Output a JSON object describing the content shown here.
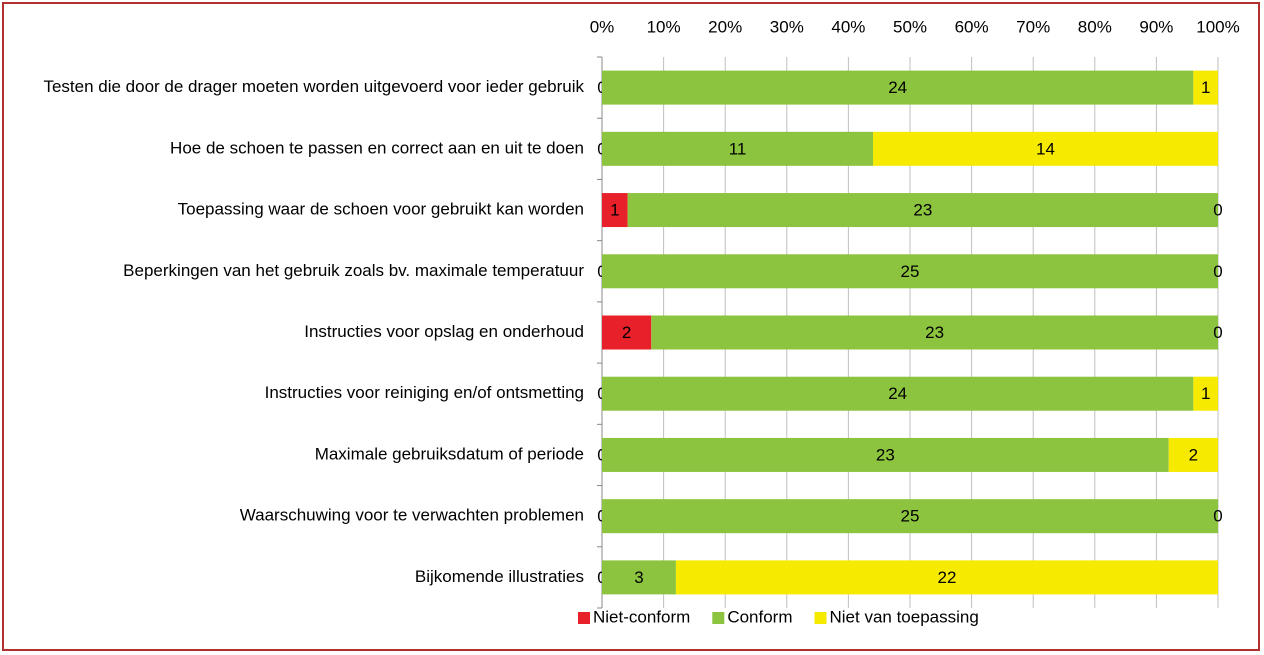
{
  "chart_data": {
    "type": "bar",
    "orientation": "horizontal",
    "stacked": "percent",
    "categories": [
      "Testen die door de drager moeten worden uitgevoerd voor ieder gebruik",
      "Hoe de schoen te passen en correct aan en uit te doen",
      "Toepassing waar de schoen voor gebruikt kan worden",
      "Beperkingen van het gebruik zoals bv. maximale temperatuur",
      "Instructies voor opslag en onderhoud",
      "Instructies voor reiniging en/of ontsmetting",
      "Maximale gebruiksdatum of periode",
      "Waarschuwing voor te verwachten problemen",
      "Bijkomende illustraties"
    ],
    "series": [
      {
        "name": "Niet-conform",
        "color": "#e8202a",
        "values": [
          0,
          0,
          1,
          0,
          2,
          0,
          0,
          0,
          0
        ]
      },
      {
        "name": "Conform",
        "color": "#8dc43f",
        "values": [
          24,
          11,
          23,
          25,
          23,
          24,
          23,
          25,
          3
        ]
      },
      {
        "name": "Niet van toepassing",
        "color": "#f5ea00",
        "values": [
          1,
          14,
          0,
          0,
          0,
          1,
          2,
          0,
          22
        ]
      }
    ],
    "xlim": [
      0,
      100
    ],
    "xticks": [
      {
        "value": 0,
        "label": "0%"
      },
      {
        "value": 10,
        "label": "10%"
      },
      {
        "value": 20,
        "label": "20%"
      },
      {
        "value": 30,
        "label": "30%"
      },
      {
        "value": 40,
        "label": "40%"
      },
      {
        "value": 50,
        "label": "50%"
      },
      {
        "value": 60,
        "label": "60%"
      },
      {
        "value": 70,
        "label": "70%"
      },
      {
        "value": 80,
        "label": "80%"
      },
      {
        "value": 90,
        "label": "90%"
      },
      {
        "value": 100,
        "label": "100%"
      }
    ],
    "grid": true,
    "legend": "bottom"
  }
}
